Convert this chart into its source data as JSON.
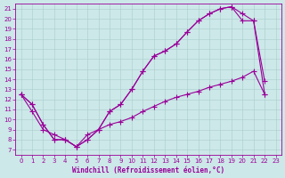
{
  "xlabel": "Windchill (Refroidissement éolien,°C)",
  "bg_color": "#cce8e8",
  "line_color": "#990099",
  "xlim": [
    -0.5,
    23.5
  ],
  "ylim": [
    6.5,
    21.5
  ],
  "xticks": [
    0,
    1,
    2,
    3,
    4,
    5,
    6,
    7,
    8,
    9,
    10,
    11,
    12,
    13,
    14,
    15,
    16,
    17,
    18,
    19,
    20,
    21,
    22,
    23
  ],
  "yticks": [
    7,
    8,
    9,
    10,
    11,
    12,
    13,
    14,
    15,
    16,
    17,
    18,
    19,
    20,
    21
  ],
  "curve1_x": [
    0,
    1,
    2,
    3,
    4,
    5,
    6,
    7,
    8,
    9,
    10,
    11,
    12,
    13,
    14,
    15,
    16,
    17,
    18,
    19,
    20,
    21,
    22
  ],
  "curve1_y": [
    12.5,
    11.5,
    9.5,
    8.0,
    8.0,
    7.3,
    8.0,
    9.0,
    10.8,
    11.5,
    13.0,
    14.8,
    16.3,
    16.8,
    17.5,
    18.7,
    19.8,
    20.5,
    21.0,
    21.2,
    20.5,
    19.8,
    13.8
  ],
  "curve2_x": [
    0,
    1,
    2,
    3,
    4,
    5,
    6,
    7,
    8,
    9,
    10,
    11,
    12,
    13,
    14,
    15,
    16,
    17,
    18,
    19,
    20,
    21,
    22
  ],
  "curve2_y": [
    12.5,
    11.5,
    9.5,
    8.0,
    8.0,
    7.3,
    8.0,
    9.0,
    10.8,
    11.5,
    13.0,
    14.8,
    16.3,
    16.8,
    17.5,
    18.7,
    19.8,
    20.5,
    21.0,
    21.2,
    19.8,
    19.8,
    12.5
  ],
  "curve3_x": [
    0,
    1,
    2,
    3,
    4,
    5,
    6,
    7,
    8,
    9,
    10,
    11,
    12,
    13,
    14,
    15,
    16,
    17,
    18,
    19,
    20,
    21,
    22
  ],
  "curve3_y": [
    12.5,
    10.8,
    9.0,
    8.5,
    8.0,
    7.3,
    8.5,
    9.0,
    9.5,
    9.8,
    10.2,
    10.8,
    11.3,
    11.8,
    12.2,
    12.5,
    12.8,
    13.2,
    13.5,
    13.8,
    14.2,
    14.8,
    12.5
  ],
  "tick_fontsize": 5,
  "xlabel_fontsize": 5.5
}
